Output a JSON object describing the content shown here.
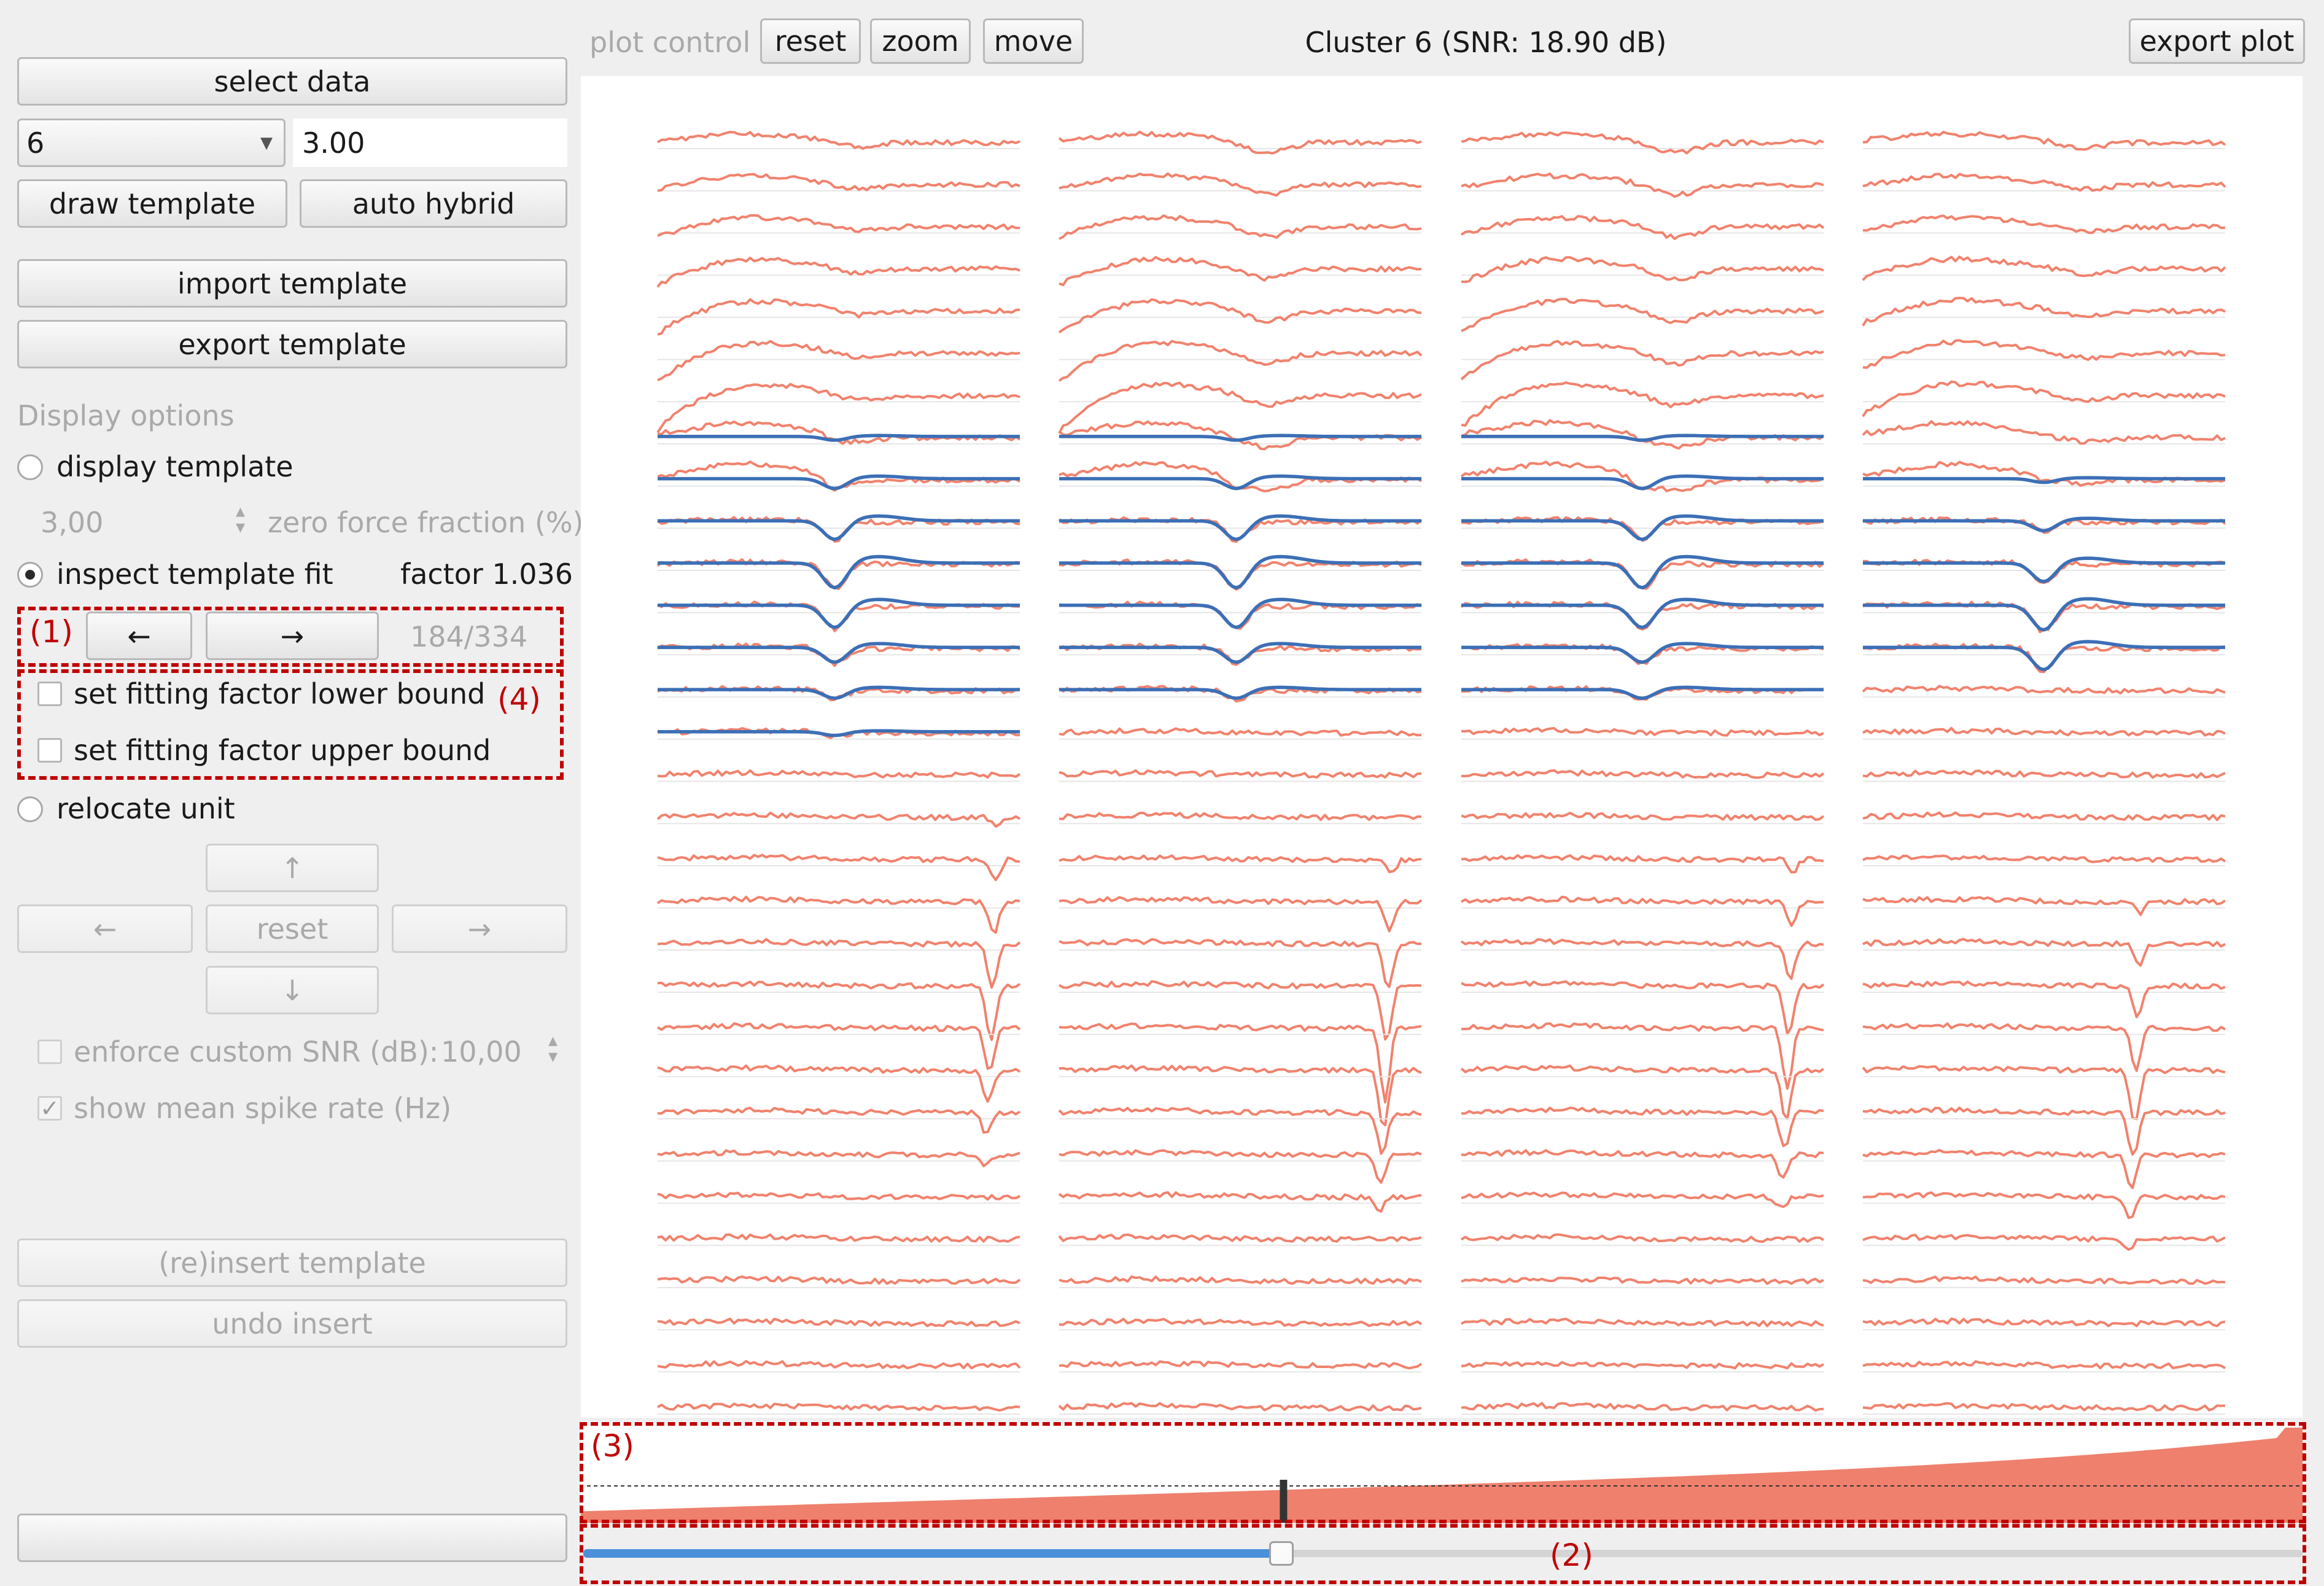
{
  "plot_control": {
    "label": "plot control",
    "reset_label": "reset",
    "zoom_label": "zoom",
    "move_label": "move",
    "title": "Cluster 6 (SNR: 18.90 dB)",
    "export_label": "export plot"
  },
  "sidebar": {
    "select_data_label": "select data",
    "cluster_select_value": "6",
    "value_field": "3.00",
    "draw_template_label": "draw template",
    "auto_hybrid_label": "auto hybrid",
    "import_template_label": "import template",
    "export_template_label": "export template",
    "display_options_heading": "Display options",
    "display_template_label": "display template",
    "zero_force_value": "3,00",
    "zero_force_label": "zero force fraction (%)",
    "inspect_fit_label": "inspect template fit",
    "factor_label": "factor 1.036",
    "prev_arrow": "←",
    "next_arrow": "→",
    "counter": "184/334",
    "lower_bound_label": "set fitting factor lower bound",
    "upper_bound_label": "set fitting factor upper bound",
    "relocate_label": "relocate unit",
    "up_arrow": "↑",
    "left_arrow": "←",
    "relocate_reset_label": "reset",
    "right_arrow": "→",
    "down_arrow": "↓",
    "enforce_snr_label": "enforce custom SNR (dB):",
    "snr_value": "10,00",
    "show_rate_label": "show mean spike rate (Hz)",
    "show_rate_mark": "✓",
    "reinsert_label": "(re)insert template",
    "undo_insert_label": "undo insert",
    "status_text": ""
  },
  "annotations": {
    "one": "(1)",
    "two": "(2)",
    "three": "(3)",
    "four": "(4)"
  },
  "icons": {
    "dropdown": "chevron-down-icon",
    "spinner": "spinner-arrows-icon"
  },
  "colors": {
    "trace": "#f0826d",
    "template": "#3c6fb6",
    "overview_fill": "#ee806d",
    "slider": "#4a90d9",
    "annotation": "#c00000"
  },
  "overview_cursor_fraction": 0.406,
  "slider_fraction": 0.406
}
